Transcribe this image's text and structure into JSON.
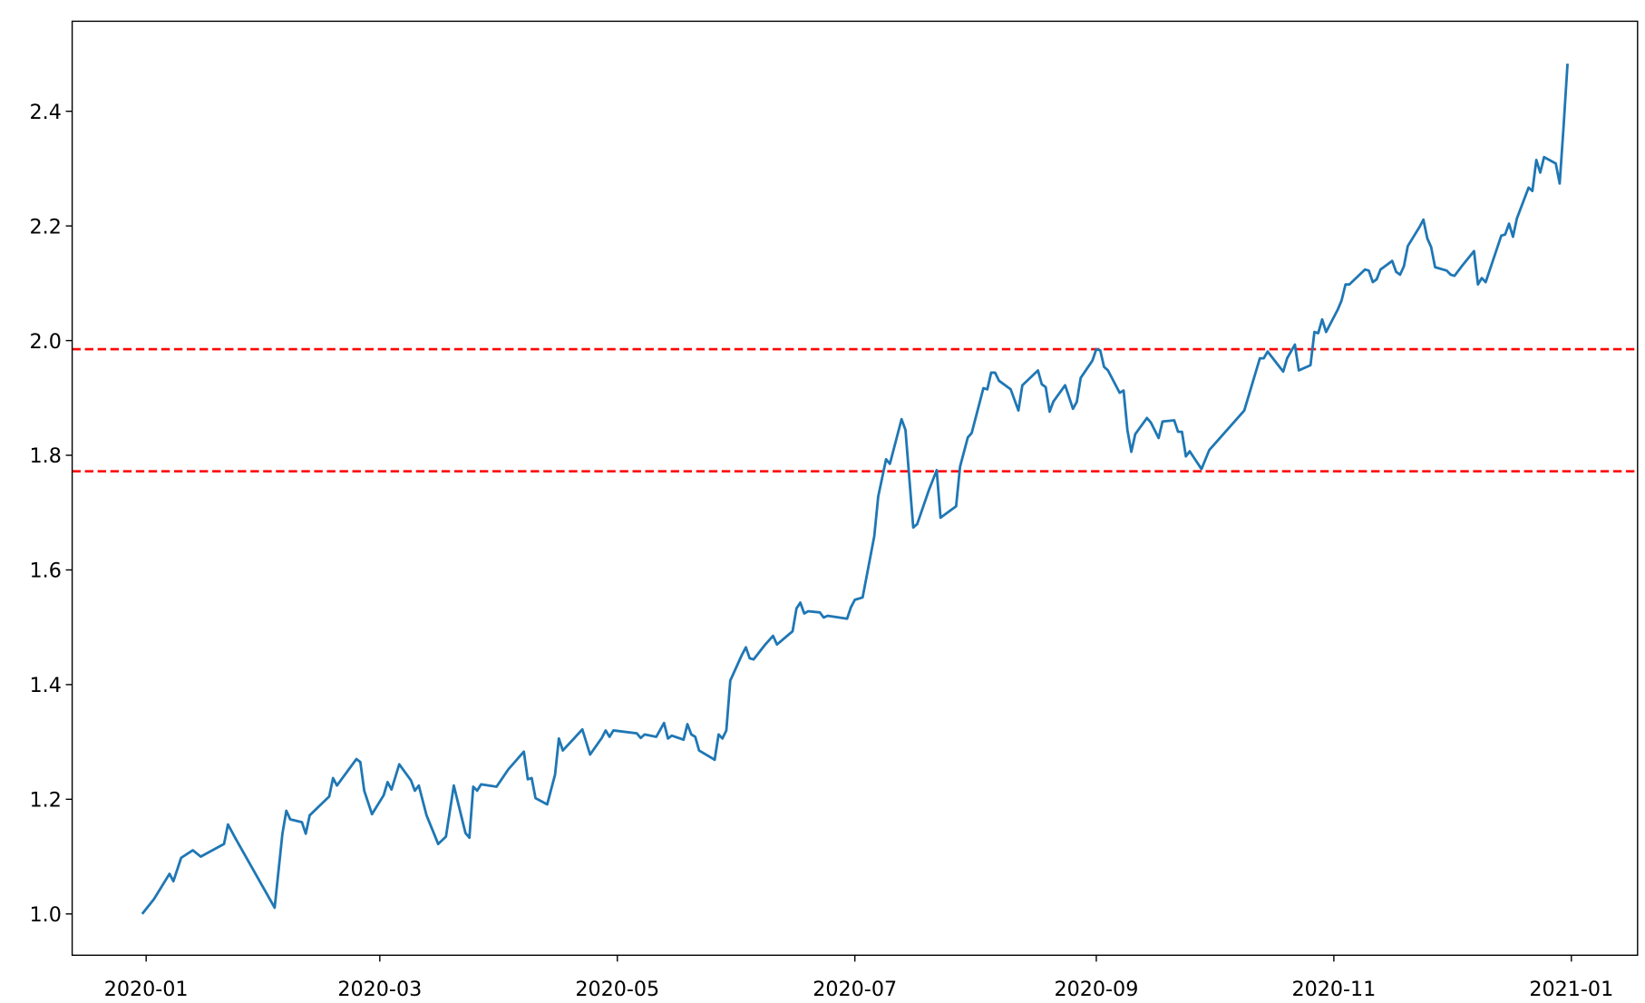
{
  "chart_data": {
    "type": "line",
    "title": "",
    "xlabel": "",
    "ylabel": "",
    "xlim": [
      "2019-12-13",
      "2021-01-18"
    ],
    "ylim": [
      0.928,
      2.557
    ],
    "grid": false,
    "x_ticks": [
      "2020-01",
      "2020-03",
      "2020-05",
      "2020-07",
      "2020-09",
      "2020-11",
      "2021-01"
    ],
    "y_ticks": [
      "1.0",
      "1.2",
      "1.4",
      "1.6",
      "1.8",
      "2.0",
      "2.2",
      "2.4"
    ],
    "series": [
      {
        "color": "#1f77b4",
        "points": [
          [
            "2019-12-31",
            1.0
          ],
          [
            "2020-01-03",
            1.026
          ],
          [
            "2020-01-07",
            1.07
          ],
          [
            "2020-01-08",
            1.057
          ],
          [
            "2020-01-10",
            1.098
          ],
          [
            "2020-01-13",
            1.111
          ],
          [
            "2020-01-15",
            1.1
          ],
          [
            "2020-01-21",
            1.122
          ],
          [
            "2020-01-22",
            1.156
          ],
          [
            "2020-01-24",
            1.131
          ],
          [
            "2020-02-03",
            1.011
          ],
          [
            "2020-02-05",
            1.14
          ],
          [
            "2020-02-06",
            1.18
          ],
          [
            "2020-02-07",
            1.165
          ],
          [
            "2020-02-10",
            1.16
          ],
          [
            "2020-02-11",
            1.14
          ],
          [
            "2020-02-12",
            1.172
          ],
          [
            "2020-02-17",
            1.205
          ],
          [
            "2020-02-18",
            1.237
          ],
          [
            "2020-02-19",
            1.224
          ],
          [
            "2020-02-24",
            1.27
          ],
          [
            "2020-02-25",
            1.265
          ],
          [
            "2020-02-26",
            1.215
          ],
          [
            "2020-02-28",
            1.174
          ],
          [
            "2020-03-02",
            1.207
          ],
          [
            "2020-03-03",
            1.23
          ],
          [
            "2020-03-04",
            1.217
          ],
          [
            "2020-03-06",
            1.261
          ],
          [
            "2020-03-09",
            1.233
          ],
          [
            "2020-03-10",
            1.215
          ],
          [
            "2020-03-11",
            1.224
          ],
          [
            "2020-03-13",
            1.172
          ],
          [
            "2020-03-16",
            1.122
          ],
          [
            "2020-03-18",
            1.135
          ],
          [
            "2020-03-20",
            1.224
          ],
          [
            "2020-03-23",
            1.141
          ],
          [
            "2020-03-24",
            1.133
          ],
          [
            "2020-03-25",
            1.222
          ],
          [
            "2020-03-26",
            1.215
          ],
          [
            "2020-03-27",
            1.226
          ],
          [
            "2020-03-31",
            1.222
          ],
          [
            "2020-04-03",
            1.252
          ],
          [
            "2020-04-07",
            1.283
          ],
          [
            "2020-04-08",
            1.235
          ],
          [
            "2020-04-09",
            1.237
          ],
          [
            "2020-04-10",
            1.202
          ],
          [
            "2020-04-13",
            1.191
          ],
          [
            "2020-04-15",
            1.243
          ],
          [
            "2020-04-16",
            1.306
          ],
          [
            "2020-04-17",
            1.285
          ],
          [
            "2020-04-20",
            1.307
          ],
          [
            "2020-04-22",
            1.322
          ],
          [
            "2020-04-24",
            1.278
          ],
          [
            "2020-04-27",
            1.307
          ],
          [
            "2020-04-28",
            1.32
          ],
          [
            "2020-04-29",
            1.309
          ],
          [
            "2020-04-30",
            1.32
          ],
          [
            "2020-05-06",
            1.315
          ],
          [
            "2020-05-07",
            1.307
          ],
          [
            "2020-05-08",
            1.313
          ],
          [
            "2020-05-11",
            1.309
          ],
          [
            "2020-05-13",
            1.333
          ],
          [
            "2020-05-14",
            1.306
          ],
          [
            "2020-05-15",
            1.311
          ],
          [
            "2020-05-18",
            1.304
          ],
          [
            "2020-05-19",
            1.331
          ],
          [
            "2020-05-20",
            1.313
          ],
          [
            "2020-05-21",
            1.309
          ],
          [
            "2020-05-22",
            1.285
          ],
          [
            "2020-05-26",
            1.269
          ],
          [
            "2020-05-27",
            1.313
          ],
          [
            "2020-05-28",
            1.306
          ],
          [
            "2020-05-29",
            1.32
          ],
          [
            "2020-05-30",
            1.407
          ],
          [
            "2020-06-02",
            1.452
          ],
          [
            "2020-06-03",
            1.465
          ],
          [
            "2020-06-04",
            1.446
          ],
          [
            "2020-06-05",
            1.444
          ],
          [
            "2020-06-08",
            1.47
          ],
          [
            "2020-06-10",
            1.485
          ],
          [
            "2020-06-11",
            1.47
          ],
          [
            "2020-06-15",
            1.493
          ],
          [
            "2020-06-16",
            1.533
          ],
          [
            "2020-06-17",
            1.543
          ],
          [
            "2020-06-18",
            1.524
          ],
          [
            "2020-06-19",
            1.528
          ],
          [
            "2020-06-22",
            1.526
          ],
          [
            "2020-06-23",
            1.517
          ],
          [
            "2020-06-24",
            1.52
          ],
          [
            "2020-06-29",
            1.515
          ],
          [
            "2020-06-30",
            1.535
          ],
          [
            "2020-07-01",
            1.548
          ],
          [
            "2020-07-03",
            1.552
          ],
          [
            "2020-07-06",
            1.659
          ],
          [
            "2020-07-07",
            1.728
          ],
          [
            "2020-07-09",
            1.793
          ],
          [
            "2020-07-10",
            1.785
          ],
          [
            "2020-07-13",
            1.863
          ],
          [
            "2020-07-14",
            1.844
          ],
          [
            "2020-07-16",
            1.674
          ],
          [
            "2020-07-17",
            1.68
          ],
          [
            "2020-07-20",
            1.739
          ],
          [
            "2020-07-22",
            1.774
          ],
          [
            "2020-07-23",
            1.691
          ],
          [
            "2020-07-27",
            1.711
          ],
          [
            "2020-07-28",
            1.78
          ],
          [
            "2020-07-30",
            1.831
          ],
          [
            "2020-07-31",
            1.839
          ],
          [
            "2020-08-03",
            1.917
          ],
          [
            "2020-08-04",
            1.915
          ],
          [
            "2020-08-05",
            1.944
          ],
          [
            "2020-08-06",
            1.944
          ],
          [
            "2020-08-07",
            1.93
          ],
          [
            "2020-08-10",
            1.915
          ],
          [
            "2020-08-12",
            1.878
          ],
          [
            "2020-08-13",
            1.922
          ],
          [
            "2020-08-17",
            1.948
          ],
          [
            "2020-08-18",
            1.924
          ],
          [
            "2020-08-19",
            1.919
          ],
          [
            "2020-08-20",
            1.876
          ],
          [
            "2020-08-21",
            1.894
          ],
          [
            "2020-08-24",
            1.922
          ],
          [
            "2020-08-26",
            1.881
          ],
          [
            "2020-08-27",
            1.893
          ],
          [
            "2020-08-28",
            1.935
          ],
          [
            "2020-08-31",
            1.965
          ],
          [
            "2020-09-01",
            1.985
          ],
          [
            "2020-09-02",
            1.983
          ],
          [
            "2020-09-03",
            1.954
          ],
          [
            "2020-09-04",
            1.948
          ],
          [
            "2020-09-07",
            1.909
          ],
          [
            "2020-09-08",
            1.913
          ],
          [
            "2020-09-09",
            1.844
          ],
          [
            "2020-09-10",
            1.806
          ],
          [
            "2020-09-11",
            1.837
          ],
          [
            "2020-09-14",
            1.865
          ],
          [
            "2020-09-15",
            1.857
          ],
          [
            "2020-09-17",
            1.83
          ],
          [
            "2020-09-18",
            1.859
          ],
          [
            "2020-09-21",
            1.861
          ],
          [
            "2020-09-22",
            1.841
          ],
          [
            "2020-09-23",
            1.841
          ],
          [
            "2020-09-24",
            1.798
          ],
          [
            "2020-09-25",
            1.807
          ],
          [
            "2020-09-28",
            1.776
          ],
          [
            "2020-09-30",
            1.809
          ],
          [
            "2020-10-09",
            1.878
          ],
          [
            "2020-10-13",
            1.969
          ],
          [
            "2020-10-14",
            1.969
          ],
          [
            "2020-10-15",
            1.981
          ],
          [
            "2020-10-19",
            1.946
          ],
          [
            "2020-10-20",
            1.969
          ],
          [
            "2020-10-22",
            1.993
          ],
          [
            "2020-10-23",
            1.948
          ],
          [
            "2020-10-26",
            1.957
          ],
          [
            "2020-10-27",
            2.015
          ],
          [
            "2020-10-28",
            2.013
          ],
          [
            "2020-10-29",
            2.037
          ],
          [
            "2020-10-30",
            2.015
          ],
          [
            "2020-11-02",
            2.054
          ],
          [
            "2020-11-03",
            2.07
          ],
          [
            "2020-11-04",
            2.098
          ],
          [
            "2020-11-05",
            2.098
          ],
          [
            "2020-11-09",
            2.124
          ],
          [
            "2020-11-10",
            2.122
          ],
          [
            "2020-11-11",
            2.102
          ],
          [
            "2020-11-12",
            2.107
          ],
          [
            "2020-11-13",
            2.124
          ],
          [
            "2020-11-16",
            2.139
          ],
          [
            "2020-11-17",
            2.12
          ],
          [
            "2020-11-18",
            2.115
          ],
          [
            "2020-11-19",
            2.13
          ],
          [
            "2020-11-20",
            2.165
          ],
          [
            "2020-11-23",
            2.198
          ],
          [
            "2020-11-24",
            2.211
          ],
          [
            "2020-11-25",
            2.178
          ],
          [
            "2020-11-26",
            2.163
          ],
          [
            "2020-11-27",
            2.128
          ],
          [
            "2020-11-30",
            2.122
          ],
          [
            "2020-12-01",
            2.115
          ],
          [
            "2020-12-02",
            2.113
          ],
          [
            "2020-12-04",
            2.131
          ],
          [
            "2020-12-07",
            2.156
          ],
          [
            "2020-12-08",
            2.098
          ],
          [
            "2020-12-09",
            2.109
          ],
          [
            "2020-12-10",
            2.102
          ],
          [
            "2020-12-14",
            2.183
          ],
          [
            "2020-12-15",
            2.185
          ],
          [
            "2020-12-16",
            2.204
          ],
          [
            "2020-12-17",
            2.181
          ],
          [
            "2020-12-18",
            2.213
          ],
          [
            "2020-12-21",
            2.267
          ],
          [
            "2020-12-22",
            2.261
          ],
          [
            "2020-12-23",
            2.315
          ],
          [
            "2020-12-24",
            2.293
          ],
          [
            "2020-12-25",
            2.32
          ],
          [
            "2020-12-28",
            2.309
          ],
          [
            "2020-12-29",
            2.274
          ],
          [
            "2020-12-30",
            2.374
          ],
          [
            "2020-12-31",
            2.483
          ]
        ]
      }
    ],
    "hlines": [
      {
        "value": 1.985,
        "color": "#ff0000",
        "style": "dashed"
      },
      {
        "value": 1.772,
        "color": "#ff0000",
        "style": "dashed"
      }
    ]
  }
}
